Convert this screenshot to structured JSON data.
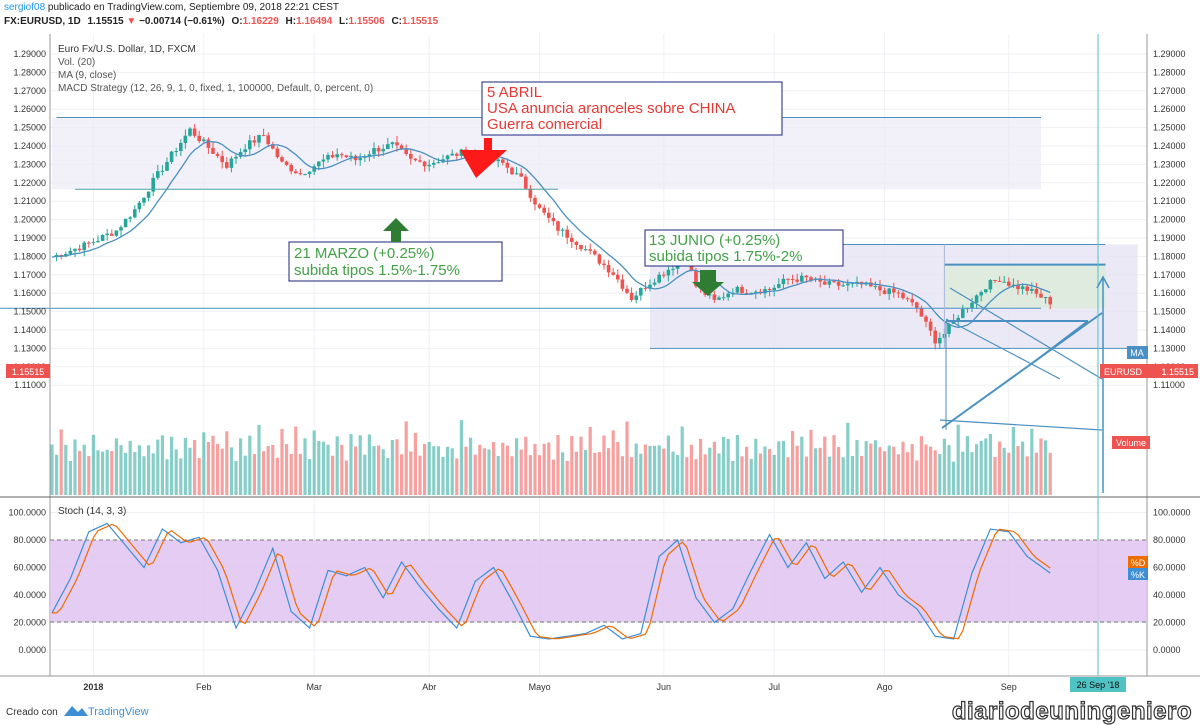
{
  "header": {
    "line1_user": "sergiof08",
    "line1_rest": "publicado en TradingView.com, Septiembre 09, 2018 22:21 CEST",
    "symbol": "FX:EURUSD, 1D",
    "last": "1.15515",
    "change": "−0.00714 (−0.61%)",
    "o_label": "O:",
    "o_val": "1.16229",
    "h_label": "H:",
    "h_val": "1.16494",
    "l_label": "L:",
    "l_val": "1.15506",
    "c_label": "C:",
    "c_val": "1.15515"
  },
  "legend": {
    "title": "Euro Fx/U.S. Dollar, 1D, FXCM",
    "vol": "Vol. (20)",
    "ma": "MA (9, close)",
    "macd": "MACD Strategy (12, 26, 9, 1, 0, fixed, 1, 100000, Default, 0, percent, 0)",
    "stoch": "Stoch (14, 3, 3)"
  },
  "annotations": {
    "abril": [
      "5 ABRIL",
      "USA anuncia aranceles sobre CHINA",
      "Guerra comercial"
    ],
    "marzo": [
      "21 MARZO (+0.25%)",
      "subida tipos 1.5%-1.75%"
    ],
    "junio": [
      "13 JUNIO (+0.25%)",
      "subida tipos 1.75%-2%"
    ]
  },
  "tags": {
    "ma": "MA",
    "eurusd_name": "EURUSD",
    "eurusd_price": "1.15515",
    "left_price": "1.15515",
    "volume": "Volume",
    "d": "%D",
    "k": "%K",
    "date_box": "26 Sep '18"
  },
  "footer": {
    "creado": "Creado con",
    "brand": "TradingView",
    "watermark": "diariodeuningeniero"
  },
  "colors": {
    "up": "#26a69a",
    "down": "#ef5350",
    "ma_line": "#4a90c2",
    "box_stroke": "#1a237e",
    "red_text": "#e53935",
    "green_text": "#43a047",
    "stoch_bg": "#e1c3f0",
    "stoch_k": "#3d8fd6",
    "stoch_d": "#ef6c00"
  },
  "chart_data": {
    "type": "candlestick",
    "symbol": "EURUSD",
    "timeframe": "1D",
    "price_axis": [
      1.29,
      1.28,
      1.27,
      1.26,
      1.25,
      1.24,
      1.23,
      1.22,
      1.21,
      1.2,
      1.19,
      1.18,
      1.17,
      1.16,
      1.15,
      1.14,
      1.13,
      1.12,
      1.11
    ],
    "price_ticks": [
      "1.29000",
      "1.28000",
      "1.27000",
      "1.26000",
      "1.25000",
      "1.24000",
      "1.23000",
      "1.22000",
      "1.21000",
      "1.20000",
      "1.19000",
      "1.18000",
      "1.17000",
      "1.16000",
      "1.15000",
      "1.14000",
      "1.13000",
      "1.12000",
      "1.11000"
    ],
    "stoch_ticks": [
      "100.0000",
      "80.0000",
      "60.0000",
      "40.0000",
      "20.0000",
      "0.0000"
    ],
    "stoch_axis": [
      100,
      80,
      60,
      40,
      20,
      0
    ],
    "stoch_bands": [
      80,
      20
    ],
    "months": [
      "2018",
      "Feb",
      "Mar",
      "Abr",
      "Mayo",
      "Jun",
      "Jul",
      "Ago",
      "Sep"
    ],
    "close_path": [
      [
        0,
        1.1796
      ],
      [
        8,
        1.1869
      ],
      [
        14,
        1.1941
      ],
      [
        18,
        1.2054
      ],
      [
        22,
        1.2209
      ],
      [
        26,
        1.2351
      ],
      [
        30,
        1.2488
      ],
      [
        34,
        1.2392
      ],
      [
        38,
        1.2295
      ],
      [
        42,
        1.2399
      ],
      [
        46,
        1.2459
      ],
      [
        50,
        1.2305
      ],
      [
        54,
        1.2249
      ],
      [
        58,
        1.2308
      ],
      [
        62,
        1.2358
      ],
      [
        66,
        1.2325
      ],
      [
        70,
        1.2379
      ],
      [
        74,
        1.2406
      ],
      [
        78,
        1.2321
      ],
      [
        82,
        1.2305
      ],
      [
        86,
        1.2341
      ],
      [
        90,
        1.237
      ],
      [
        94,
        1.2333
      ],
      [
        98,
        1.2305
      ],
      [
        102,
        1.2218
      ],
      [
        106,
        1.2056
      ],
      [
        110,
        1.195
      ],
      [
        114,
        1.1879
      ],
      [
        118,
        1.1797
      ],
      [
        122,
        1.1709
      ],
      [
        126,
        1.1574
      ],
      [
        130,
        1.166
      ],
      [
        134,
        1.1731
      ],
      [
        136,
        1.1765
      ],
      [
        138,
        1.178
      ],
      [
        140,
        1.164
      ],
      [
        144,
        1.1555
      ],
      [
        148,
        1.162
      ],
      [
        152,
        1.1615
      ],
      [
        156,
        1.162
      ],
      [
        160,
        1.1676
      ],
      [
        164,
        1.168
      ],
      [
        168,
        1.1648
      ],
      [
        172,
        1.1643
      ],
      [
        176,
        1.1646
      ],
      [
        180,
        1.1618
      ],
      [
        184,
        1.1596
      ],
      [
        188,
        1.152
      ],
      [
        190,
        1.143
      ],
      [
        192,
        1.1345
      ],
      [
        194,
        1.138
      ],
      [
        197,
        1.148
      ],
      [
        200,
        1.156
      ],
      [
        203,
        1.164
      ],
      [
        206,
        1.168
      ],
      [
        209,
        1.164
      ],
      [
        212,
        1.162
      ],
      [
        215,
        1.158
      ],
      [
        217,
        1.1552
      ]
    ],
    "ma_period": 9,
    "levels": [
      1.2555,
      1.2165,
      1.1865,
      1.1755,
      1.1518,
      1.13
    ],
    "last_price": 1.15515,
    "volume_pattern": [
      0.55,
      0.35,
      0.62,
      0.48,
      0.3,
      0.72,
      0.4,
      0.58,
      0.33,
      0.66,
      0.45,
      0.52
    ],
    "stoch_k": [
      [
        0,
        27
      ],
      [
        4,
        52
      ],
      [
        8,
        86
      ],
      [
        12,
        92
      ],
      [
        16,
        76
      ],
      [
        20,
        60
      ],
      [
        24,
        88
      ],
      [
        28,
        78
      ],
      [
        32,
        82
      ],
      [
        36,
        58
      ],
      [
        40,
        16
      ],
      [
        44,
        42
      ],
      [
        48,
        74
      ],
      [
        52,
        28
      ],
      [
        56,
        16
      ],
      [
        60,
        58
      ],
      [
        64,
        54
      ],
      [
        68,
        60
      ],
      [
        72,
        38
      ],
      [
        76,
        64
      ],
      [
        80,
        46
      ],
      [
        84,
        30
      ],
      [
        88,
        16
      ],
      [
        92,
        50
      ],
      [
        96,
        60
      ],
      [
        100,
        36
      ],
      [
        104,
        10
      ],
      [
        108,
        8
      ],
      [
        112,
        10
      ],
      [
        116,
        12
      ],
      [
        120,
        18
      ],
      [
        124,
        8
      ],
      [
        128,
        12
      ],
      [
        132,
        68
      ],
      [
        136,
        80
      ],
      [
        140,
        38
      ],
      [
        144,
        20
      ],
      [
        148,
        30
      ],
      [
        152,
        58
      ],
      [
        156,
        84
      ],
      [
        160,
        60
      ],
      [
        164,
        78
      ],
      [
        168,
        52
      ],
      [
        172,
        64
      ],
      [
        176,
        42
      ],
      [
        180,
        60
      ],
      [
        184,
        40
      ],
      [
        188,
        30
      ],
      [
        192,
        10
      ],
      [
        196,
        8
      ],
      [
        200,
        56
      ],
      [
        204,
        88
      ],
      [
        208,
        86
      ],
      [
        212,
        68
      ],
      [
        217,
        56
      ]
    ]
  }
}
